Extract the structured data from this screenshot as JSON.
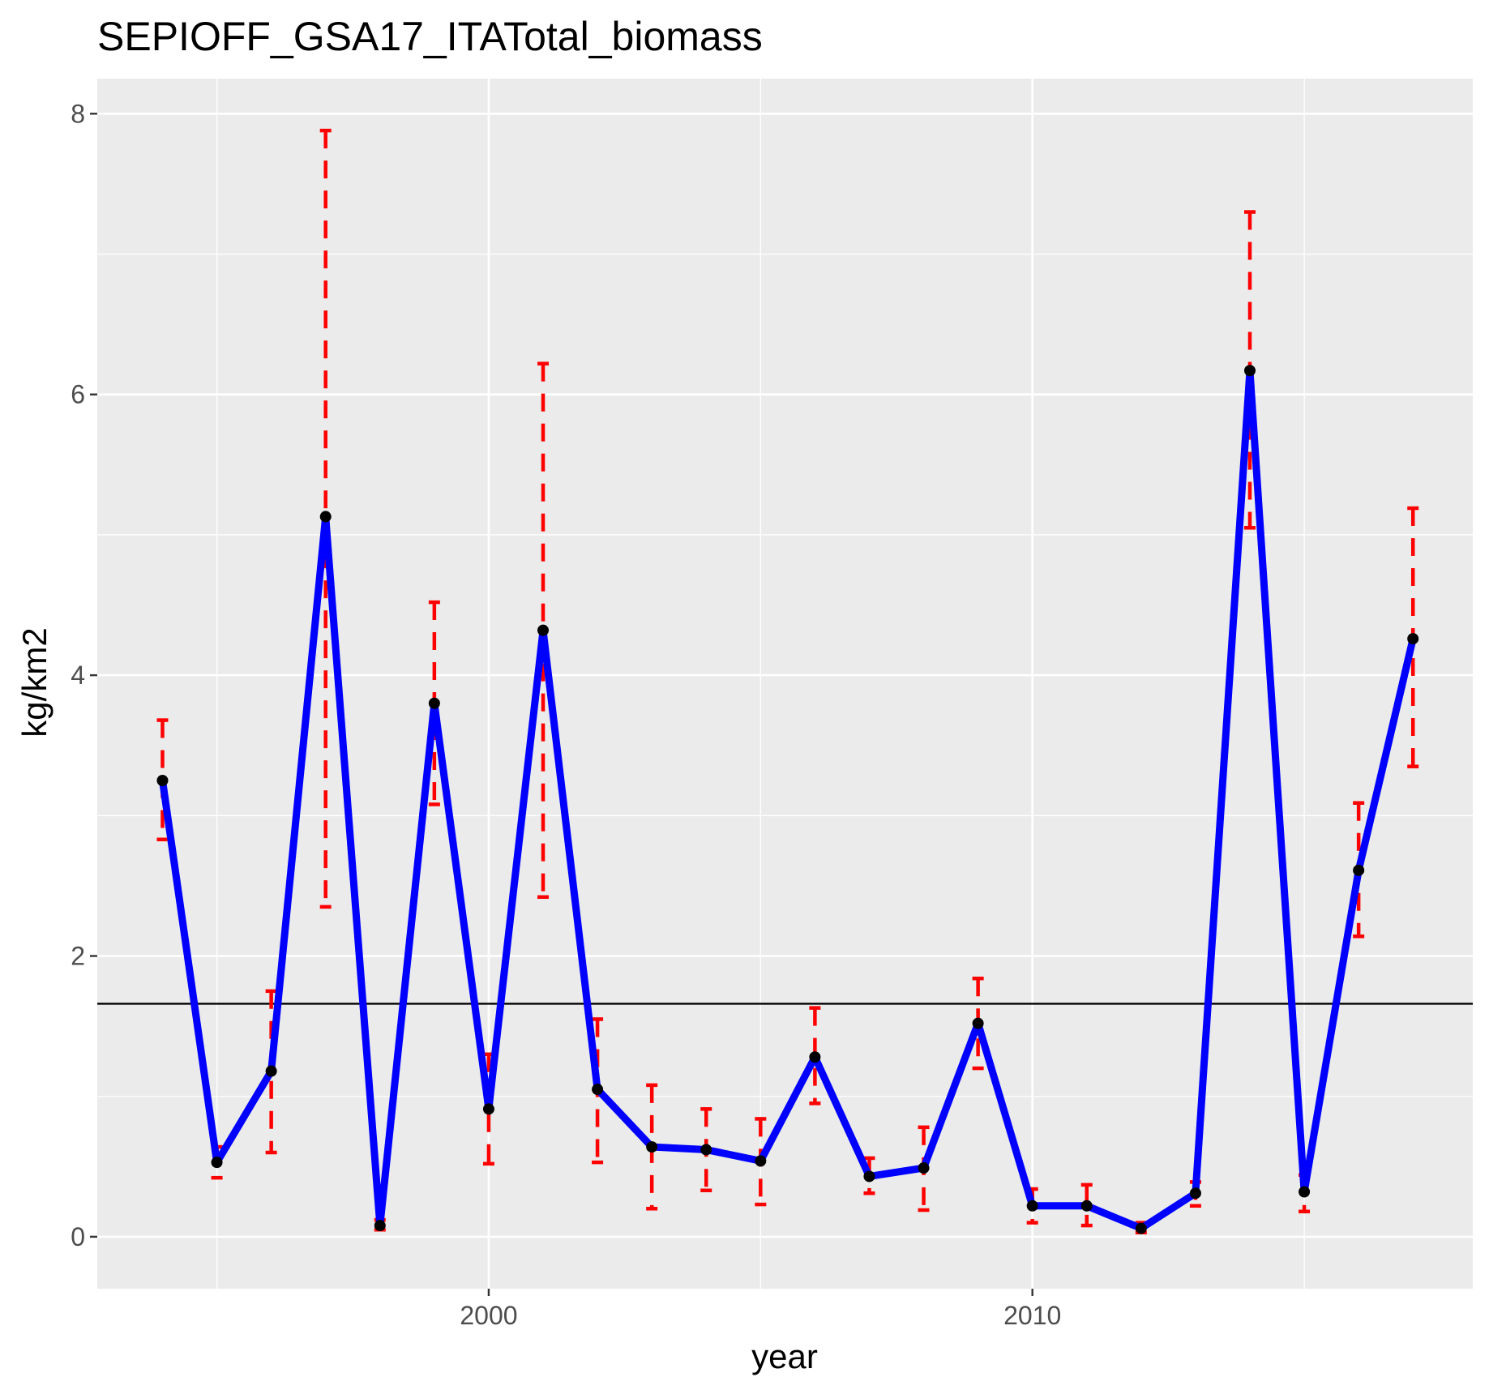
{
  "chart_data": {
    "type": "line",
    "title": "SEPIOFF_GSA17_ITATotal_biomass",
    "xlabel": "year",
    "ylabel": "kg/km2",
    "xlim": [
      1992.8,
      2018.1
    ],
    "ylim": [
      -0.37,
      8.25
    ],
    "x_ticks": [
      2000,
      2010
    ],
    "y_ticks": [
      0,
      2,
      4,
      6,
      8
    ],
    "x_tick_labels": [
      "2000",
      "2010"
    ],
    "y_tick_labels": [
      "0",
      "2",
      "4",
      "6",
      "8"
    ],
    "grid": true,
    "reference_line": 1.66,
    "series": [
      {
        "x": [
          1994,
          1995,
          1996,
          1997,
          1998,
          1999,
          2000,
          2001,
          2002,
          2003,
          2004,
          2005,
          2006,
          2007,
          2008,
          2009,
          2010,
          2011,
          2012,
          2013,
          2014,
          2015,
          2016,
          2017
        ],
        "values": [
          3.25,
          0.53,
          1.18,
          5.13,
          0.08,
          3.8,
          0.91,
          4.32,
          1.05,
          0.64,
          0.62,
          0.54,
          1.28,
          0.43,
          0.49,
          1.52,
          0.22,
          0.22,
          0.06,
          0.31,
          6.17,
          0.32,
          2.61,
          4.26
        ],
        "lower": [
          2.83,
          0.42,
          0.6,
          2.35,
          0.05,
          3.08,
          0.52,
          2.42,
          0.53,
          0.2,
          0.33,
          0.23,
          0.95,
          0.31,
          0.19,
          1.2,
          0.1,
          0.08,
          0.03,
          0.22,
          5.05,
          0.18,
          2.14,
          3.35
        ],
        "upper": [
          3.68,
          0.64,
          1.75,
          7.88,
          0.12,
          4.52,
          1.3,
          6.22,
          1.55,
          1.08,
          0.91,
          0.84,
          1.63,
          0.56,
          0.78,
          1.84,
          0.34,
          0.37,
          0.1,
          0.39,
          7.3,
          0.44,
          3.09,
          5.19
        ]
      }
    ],
    "colors": {
      "line": "#0000ff",
      "points": "#000000",
      "error_bars": "#ff0000",
      "panel_background": "#ebebeb",
      "grid": "#ffffff",
      "reference_line": "#000000"
    }
  }
}
